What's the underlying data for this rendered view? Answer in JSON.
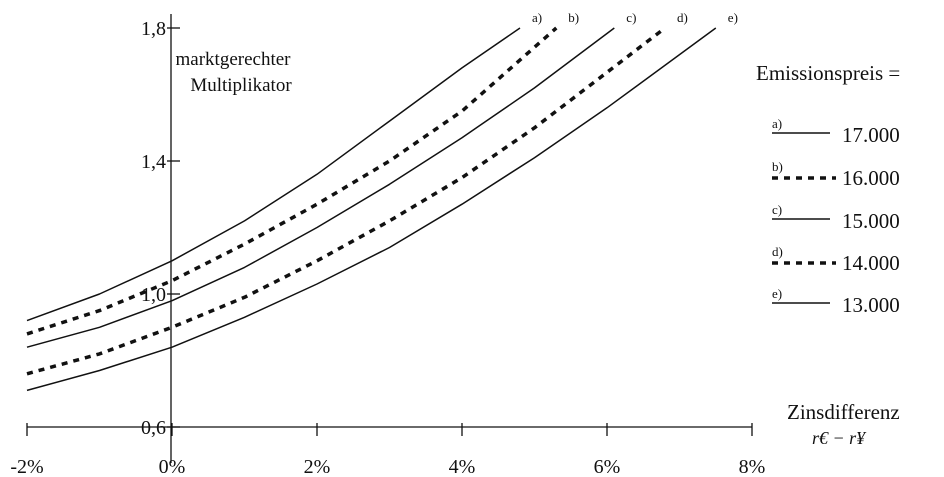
{
  "chart_data": {
    "type": "line",
    "title": "",
    "ylabel_lines": [
      "marktgerechter",
      "Multiplikator"
    ],
    "xlabel": "Zinsdifferenz",
    "xlabel_formula": "r€ − r¥",
    "x_ticks": [
      "-2%",
      "0%",
      "2%",
      "4%",
      "6%",
      "8%"
    ],
    "y_ticks": [
      "0,6",
      "1,0",
      "1,4",
      "1,8"
    ],
    "xlim": [
      -2,
      8
    ],
    "ylim": [
      0.6,
      1.8
    ],
    "legend_title": "Emissionspreis =",
    "legend_position": "right",
    "series": [
      {
        "key": "a)",
        "name": "17.000",
        "style": "solid",
        "x": [
          -2,
          -1,
          0,
          1,
          2,
          3,
          4,
          4.8
        ],
        "y": [
          0.92,
          1.0,
          1.1,
          1.22,
          1.36,
          1.52,
          1.68,
          1.8
        ]
      },
      {
        "key": "b)",
        "name": "16.000",
        "style": "dashed",
        "x": [
          -2,
          -1,
          0,
          1,
          2,
          3,
          4,
          5.3
        ],
        "y": [
          0.88,
          0.95,
          1.04,
          1.15,
          1.27,
          1.4,
          1.55,
          1.8
        ]
      },
      {
        "key": "c)",
        "name": "15.000",
        "style": "solid",
        "x": [
          -2,
          -1,
          0,
          1,
          2,
          3,
          4,
          5,
          6.1
        ],
        "y": [
          0.84,
          0.9,
          0.98,
          1.08,
          1.2,
          1.33,
          1.47,
          1.62,
          1.8
        ]
      },
      {
        "key": "d)",
        "name": "14.000",
        "style": "dashed",
        "x": [
          -2,
          -1,
          0,
          1,
          2,
          3,
          4,
          5,
          6.8
        ],
        "y": [
          0.76,
          0.82,
          0.9,
          0.99,
          1.1,
          1.22,
          1.35,
          1.5,
          1.8
        ]
      },
      {
        "key": "e)",
        "name": "13.000",
        "style": "solid",
        "x": [
          -2,
          -1,
          0,
          1,
          2,
          3,
          4,
          5,
          6,
          7.5
        ],
        "y": [
          0.71,
          0.77,
          0.84,
          0.93,
          1.03,
          1.14,
          1.27,
          1.41,
          1.56,
          1.8
        ]
      }
    ]
  }
}
